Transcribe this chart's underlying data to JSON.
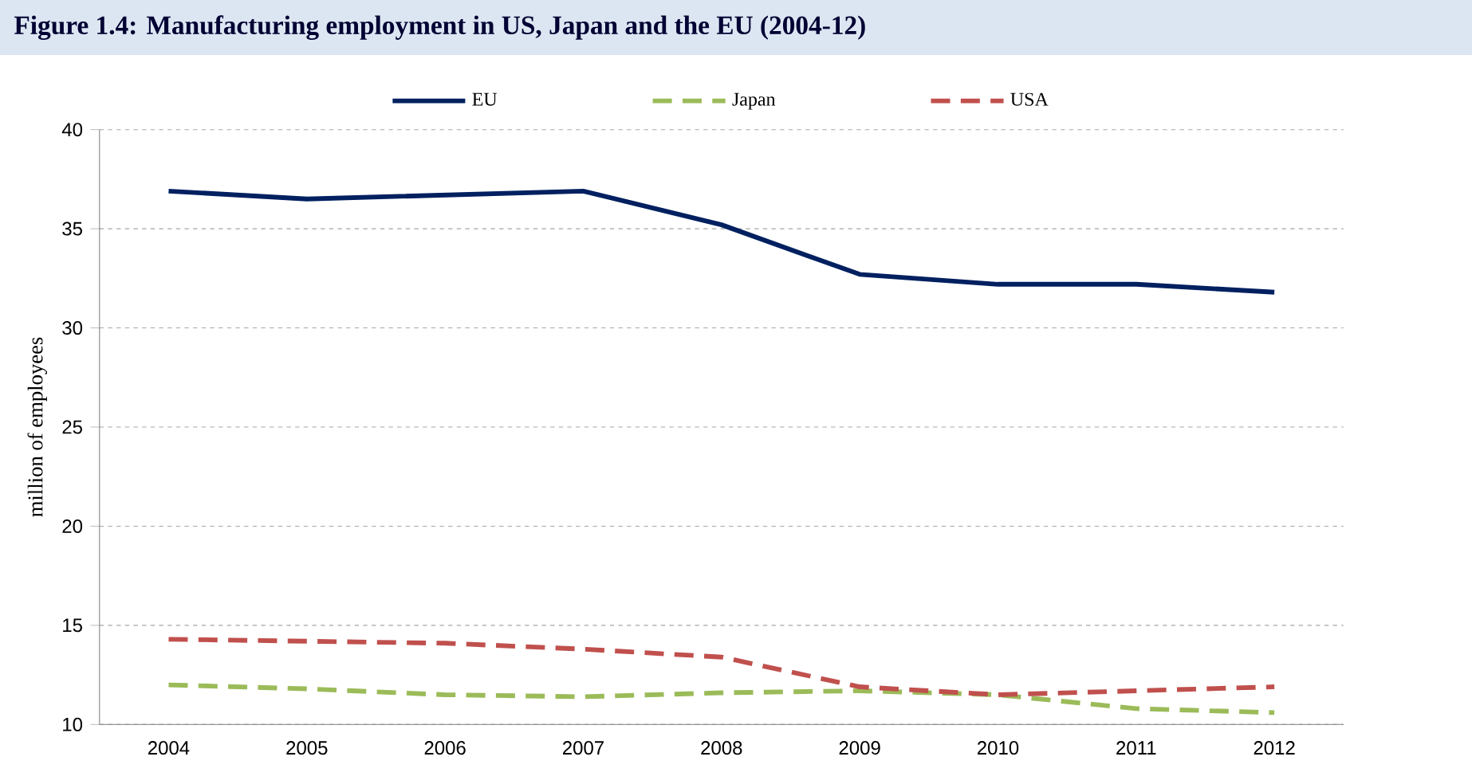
{
  "chart_data": {
    "type": "line",
    "title": "Figure 1.4: Manufacturing employment in US, Japan and the EU (2004-12)",
    "ylabel": "million of employees",
    "categories": [
      "2004",
      "2005",
      "2006",
      "2007",
      "2008",
      "2009",
      "2010",
      "2011",
      "2012"
    ],
    "series": [
      {
        "name": "EU",
        "color": "#002060",
        "line_style": "solid",
        "values": [
          36.9,
          36.5,
          36.7,
          36.9,
          35.2,
          32.7,
          32.2,
          32.2,
          31.8
        ]
      },
      {
        "name": "Japan",
        "color": "#9bbb59",
        "line_style": "dashed",
        "values": [
          12.0,
          11.8,
          11.5,
          11.4,
          11.6,
          11.7,
          11.5,
          10.8,
          10.6
        ]
      },
      {
        "name": "USA",
        "color": "#c0504d",
        "line_style": "dashed",
        "values": [
          14.3,
          14.2,
          14.1,
          13.8,
          13.4,
          11.9,
          11.5,
          11.7,
          11.9
        ]
      }
    ],
    "ylim": [
      10,
      40
    ],
    "yticks": [
      10,
      15,
      20,
      25,
      30,
      35,
      40
    ],
    "grid": "y",
    "legend": "top",
    "marker": "none"
  }
}
